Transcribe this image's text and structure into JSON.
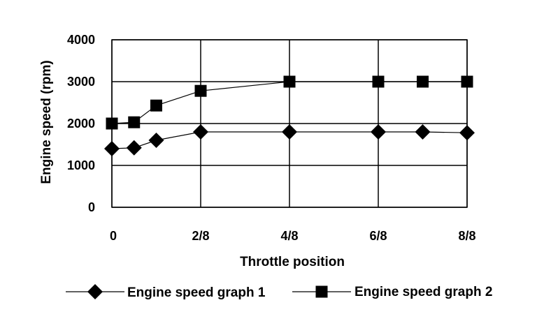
{
  "chart_data": {
    "type": "line",
    "title": "",
    "xlabel": "Throttle position",
    "ylabel": "Engine speed (rpm)",
    "x_tick_labels": [
      {
        "x": 0,
        "label": "0"
      },
      {
        "x": 2,
        "label": "2/8"
      },
      {
        "x": 4,
        "label": "4/8"
      },
      {
        "x": 6,
        "label": "6/8"
      },
      {
        "x": 8,
        "label": "8/8"
      }
    ],
    "y_ticks": [
      0,
      1000,
      2000,
      3000,
      4000
    ],
    "xlim": [
      0,
      8
    ],
    "ylim": [
      0,
      4000
    ],
    "grid": true,
    "legend_position": "bottom",
    "series": [
      {
        "name": "Engine speed graph 1",
        "marker": "diamond",
        "color": "#000000",
        "x": [
          0,
          0.5,
          1,
          2,
          4,
          6,
          7,
          8
        ],
        "y": [
          1400,
          1420,
          1600,
          1800,
          1800,
          1800,
          1800,
          1780
        ]
      },
      {
        "name": "Engine speed graph 2",
        "marker": "square",
        "color": "#000000",
        "x": [
          0,
          0.5,
          1,
          2,
          4,
          6,
          7,
          8
        ],
        "y": [
          2000,
          2030,
          2430,
          2780,
          3000,
          3000,
          3000,
          3000
        ]
      }
    ]
  }
}
